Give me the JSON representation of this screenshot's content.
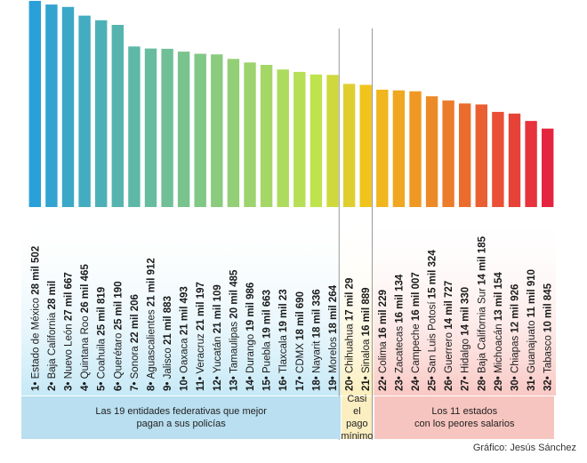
{
  "chart_data": {
    "type": "bar",
    "ylim": [
      0,
      30
    ],
    "categories": [
      "Estado de México",
      "Baja California",
      "Nuevo León",
      "Quintana Roo",
      "Coahuila",
      "Querétaro",
      "Sonora",
      "Aguascalientes",
      "Jalisco",
      "Oaxaca",
      "Veracruz",
      "Yucatán",
      "Tamaulipas",
      "Durango",
      "Puebla",
      "Tlaxcala",
      "CDMX",
      "Nayarit",
      "Morelos",
      "Chihuahua",
      "Sinaloa",
      "Colima",
      "Zacatecas",
      "Campeche",
      "San Luis Potosí",
      "Guerrero",
      "Hidalgo",
      "Baja California Sur",
      "Michoacán",
      "Chiapas",
      "Guanajuato",
      "Tabasco"
    ],
    "ranks": [
      "1",
      "2",
      "3",
      "4",
      "5",
      "6",
      "7",
      "8",
      "9",
      "10",
      "11",
      "12",
      "13",
      "14",
      "15",
      "16",
      "17",
      "18",
      "19",
      "20",
      "21",
      "22",
      "23",
      "24",
      "25",
      "26",
      "27",
      "28",
      "29",
      "30",
      "31",
      "32"
    ],
    "amount_labels": [
      "28 mil 502",
      "28 mil",
      "27 mil 667",
      "26 mil 465",
      "25 mil 819",
      "25 mil 190",
      "22 mil 206",
      "21 mil 912",
      "21 mil 883",
      "21 mil 493",
      "21 mil 197",
      "21 mil 109",
      "20 mil 485",
      "19 mil 986",
      "19 mil 663",
      "19 mil 23",
      "18 mil 690",
      "18 mil 336",
      "18 mil 264",
      "17 mil 29",
      "16 mil 889",
      "16 mil 229",
      "16 mil 134",
      "16 mil 007",
      "15 mil 324",
      "14 mil 727",
      "14 mil 330",
      "14 mil 185",
      "13 mil 154",
      "12 mil 926",
      "11 mil 910",
      "10 mil 845"
    ],
    "values": [
      28502,
      28000,
      27667,
      26465,
      25819,
      25190,
      22206,
      21912,
      21883,
      21493,
      21197,
      21109,
      20485,
      19986,
      19663,
      19023,
      18690,
      18336,
      18264,
      17029,
      16889,
      16229,
      16134,
      16007,
      15324,
      14727,
      14330,
      14185,
      13154,
      12926,
      11910,
      10845
    ],
    "groups": [
      {
        "text": "Las 19 entidades federativas que mejor\npagan a sus policías",
        "from": 0,
        "to": 18,
        "color": "#b9dff0"
      },
      {
        "text": "Casi\nel pago\nmínimo",
        "from": 19,
        "to": 20,
        "color": "#fbeec0"
      },
      {
        "text": "Los 11 estados\ncon los peores salarios",
        "from": 21,
        "to": 31,
        "color": "#f7c5bf"
      }
    ],
    "colors": {
      "start": "#2aa0d8",
      "mid": "#bfe34d",
      "warm": "#f2c21b",
      "end": "#e5253f"
    }
  },
  "credit": "Gráfico: Jesús Sánchez"
}
